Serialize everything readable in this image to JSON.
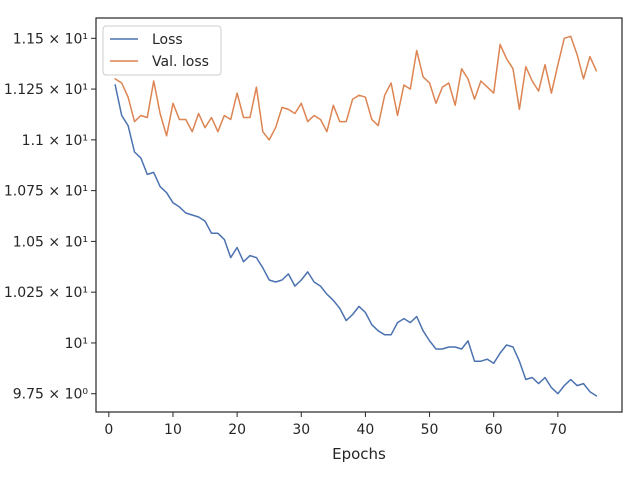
{
  "chart_data": {
    "type": "line",
    "title": "",
    "xlabel": "Epochs",
    "ylabel": "",
    "xlim": [
      -2,
      80
    ],
    "ylim": [
      9.66,
      11.6
    ],
    "grid": false,
    "legend_position": "top-left",
    "x_ticks": [
      {
        "value": 0,
        "label": "0"
      },
      {
        "value": 10,
        "label": "10"
      },
      {
        "value": 20,
        "label": "20"
      },
      {
        "value": 30,
        "label": "30"
      },
      {
        "value": 40,
        "label": "40"
      },
      {
        "value": 50,
        "label": "50"
      },
      {
        "value": 60,
        "label": "60"
      },
      {
        "value": 70,
        "label": "70"
      }
    ],
    "y_ticks": [
      {
        "value": 9.75,
        "label": "9.75 × 10⁰"
      },
      {
        "value": 10.0,
        "label": "10¹"
      },
      {
        "value": 10.25,
        "label": "1.025 × 10¹"
      },
      {
        "value": 10.5,
        "label": "1.05 × 10¹"
      },
      {
        "value": 10.75,
        "label": "1.075 × 10¹"
      },
      {
        "value": 11.0,
        "label": "1.1 × 10¹"
      },
      {
        "value": 11.25,
        "label": "1.125 × 10¹"
      },
      {
        "value": 11.5,
        "label": "1.15 × 10¹"
      }
    ],
    "x": [
      1,
      2,
      3,
      4,
      5,
      6,
      7,
      8,
      9,
      10,
      11,
      12,
      13,
      14,
      15,
      16,
      17,
      18,
      19,
      20,
      21,
      22,
      23,
      24,
      25,
      26,
      27,
      28,
      29,
      30,
      31,
      32,
      33,
      34,
      35,
      36,
      37,
      38,
      39,
      40,
      41,
      42,
      43,
      44,
      45,
      46,
      47,
      48,
      49,
      50,
      51,
      52,
      53,
      54,
      55,
      56,
      57,
      58,
      59,
      60,
      61,
      62,
      63,
      64,
      65,
      66,
      67,
      68,
      69,
      70,
      71,
      72,
      73,
      74,
      75,
      76
    ],
    "series": [
      {
        "name": "Loss",
        "color": "#4c72b0",
        "values": [
          11.27,
          11.12,
          11.07,
          10.94,
          10.91,
          10.83,
          10.84,
          10.77,
          10.74,
          10.69,
          10.67,
          10.64,
          10.63,
          10.62,
          10.6,
          10.54,
          10.54,
          10.51,
          10.42,
          10.47,
          10.4,
          10.43,
          10.42,
          10.37,
          10.31,
          10.3,
          10.31,
          10.34,
          10.28,
          10.31,
          10.35,
          10.3,
          10.28,
          10.24,
          10.21,
          10.17,
          10.11,
          10.14,
          10.18,
          10.15,
          10.09,
          10.06,
          10.04,
          10.04,
          10.1,
          10.12,
          10.1,
          10.13,
          10.06,
          10.01,
          9.97,
          9.97,
          9.98,
          9.98,
          9.97,
          10.01,
          9.91,
          9.91,
          9.92,
          9.9,
          9.95,
          9.99,
          9.98,
          9.91,
          9.82,
          9.83,
          9.8,
          9.83,
          9.78,
          9.75,
          9.79,
          9.82,
          9.79,
          9.8,
          9.76,
          9.74
        ]
      },
      {
        "name": "Val. loss",
        "color": "#dd8452",
        "values": [
          11.3,
          11.28,
          11.21,
          11.09,
          11.12,
          11.11,
          11.29,
          11.13,
          11.02,
          11.18,
          11.1,
          11.1,
          11.04,
          11.13,
          11.06,
          11.11,
          11.04,
          11.12,
          11.1,
          11.23,
          11.11,
          11.11,
          11.26,
          11.04,
          11.0,
          11.06,
          11.16,
          11.15,
          11.13,
          11.18,
          11.09,
          11.12,
          11.1,
          11.04,
          11.17,
          11.09,
          11.09,
          11.2,
          11.22,
          11.21,
          11.1,
          11.07,
          11.22,
          11.28,
          11.12,
          11.27,
          11.25,
          11.44,
          11.31,
          11.28,
          11.18,
          11.26,
          11.28,
          11.17,
          11.35,
          11.3,
          11.2,
          11.29,
          11.26,
          11.23,
          11.47,
          11.4,
          11.35,
          11.15,
          11.36,
          11.29,
          11.24,
          11.37,
          11.23,
          11.37,
          11.5,
          11.51,
          11.42,
          11.3,
          11.41,
          11.34
        ]
      }
    ]
  }
}
